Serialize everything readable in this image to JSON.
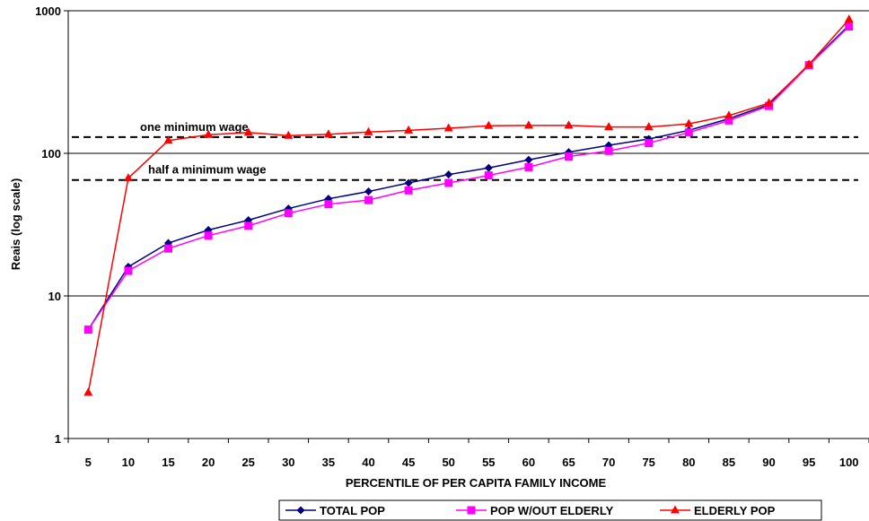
{
  "chart_data": {
    "type": "line",
    "xlabel": "PERCENTILE OF PER CAPITA FAMILY INCOME",
    "ylabel": "Reais (log scale)",
    "yscale": "log",
    "ylim": [
      1,
      1000
    ],
    "yticks": [
      "1",
      "10",
      "100",
      "1000"
    ],
    "categories": [
      "5",
      "10",
      "15",
      "20",
      "25",
      "30",
      "35",
      "40",
      "45",
      "50",
      "55",
      "60",
      "65",
      "70",
      "75",
      "80",
      "85",
      "90",
      "95",
      "100"
    ],
    "grid": "horizontal major",
    "legend_position": "bottom",
    "series": [
      {
        "name": "TOTAL POP",
        "color": "#00007f",
        "marker": "diamond",
        "values": [
          5.8,
          16,
          23.5,
          29,
          34,
          41,
          48,
          54,
          62,
          71,
          79,
          90,
          102,
          114,
          126,
          145,
          175,
          220,
          420,
          790
        ]
      },
      {
        "name": "POP W/OUT ELDERLY",
        "color": "#ff00ff",
        "marker": "square",
        "values": [
          5.8,
          15,
          21.5,
          26.5,
          31,
          38,
          44,
          47,
          55,
          62,
          70,
          80,
          95,
          104,
          118,
          140,
          170,
          215,
          415,
          775
        ]
      },
      {
        "name": "ELDERLY POP",
        "color": "#ff0000",
        "marker": "triangle",
        "values": [
          2.1,
          67,
          123,
          135,
          140,
          133,
          136,
          141,
          145,
          150,
          156,
          157,
          157,
          153,
          153,
          161,
          184,
          225,
          420,
          870
        ]
      }
    ],
    "reference_lines": [
      {
        "label": "one minimum wage",
        "value": 130
      },
      {
        "label": "half a minimum wage",
        "value": 65
      }
    ]
  }
}
